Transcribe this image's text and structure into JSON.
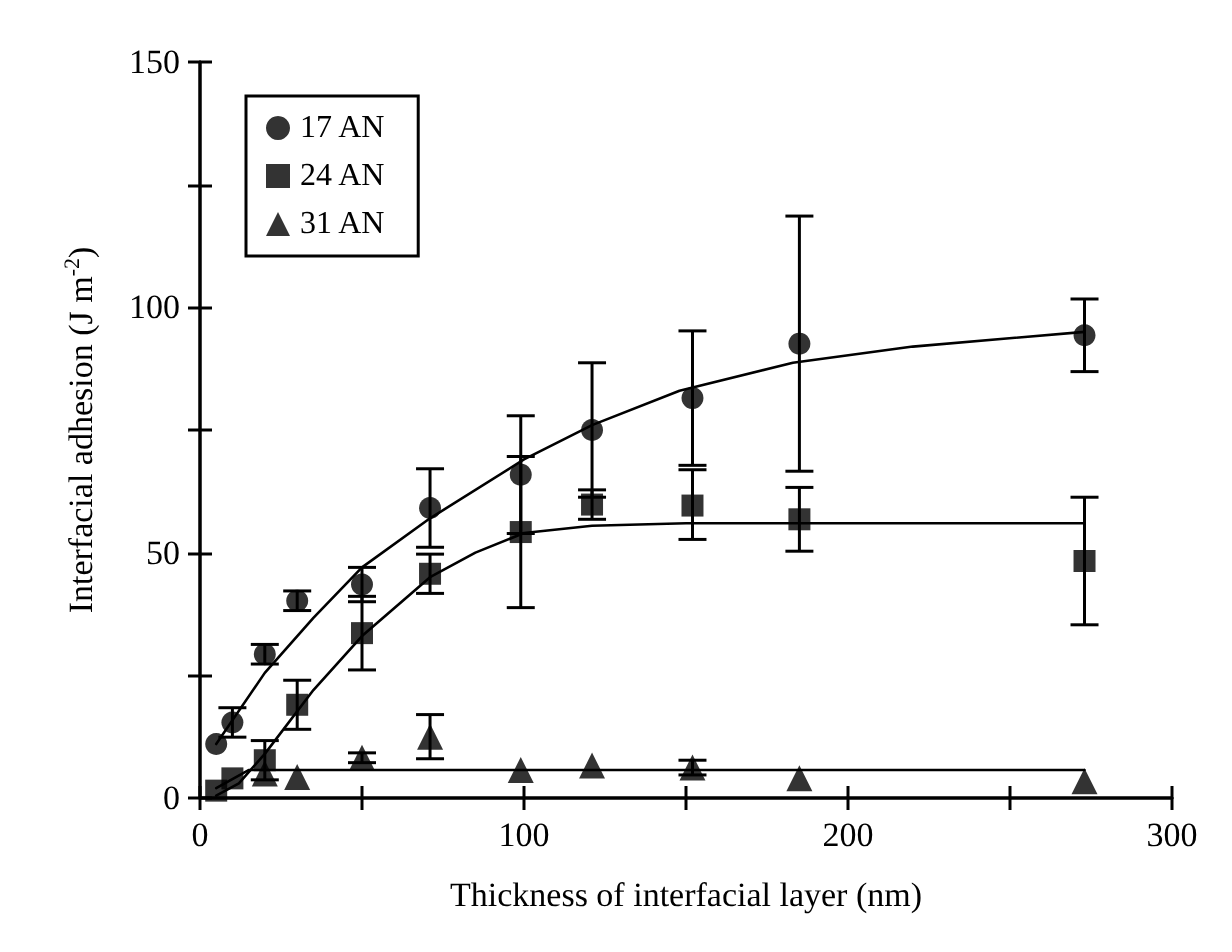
{
  "chart_data": {
    "type": "scatter",
    "xlabel": "Thickness of interfacial layer (nm)",
    "ylabel": "Interfacial adhesion (J m$^{-2}$)",
    "xlim": [
      0,
      300
    ],
    "xticks": [
      0,
      {
        "value": 50,
        "label": null
      },
      100,
      {
        "value": 150,
        "label": null
      },
      200,
      {
        "value": 250,
        "label": null
      },
      300
    ],
    "ylim": [
      0,
      150
    ],
    "yticks": [
      0,
      {
        "value": 25,
        "label": null
      },
      50,
      {
        "value": 75,
        "label": null
      },
      100,
      {
        "value": 125,
        "label": null
      },
      150
    ],
    "grid": false,
    "legend": "top left",
    "series": [
      {
        "name": "17 AN",
        "color": "#000000",
        "marker": "circle",
        "x": [
          5,
          10,
          20,
          30,
          50,
          71,
          99,
          121,
          152,
          185,
          273
        ],
        "values": [
          11,
          15.4,
          29.3,
          40.2,
          43.5,
          59.1,
          65.9,
          75,
          81.5,
          92.6,
          94.3
        ],
        "errors": [
          null,
          3,
          2,
          2,
          3.5,
          8,
          12,
          13.7,
          13.7,
          26,
          7.4
        ]
      },
      {
        "name": "24 AN",
        "color": "#000000",
        "marker": "square",
        "x": [
          5,
          10,
          20,
          30,
          50,
          71,
          99,
          121,
          152,
          185,
          273
        ],
        "values": [
          1.5,
          4,
          7.7,
          19,
          33.6,
          45.7,
          54.2,
          59.8,
          59.6,
          56.8,
          48.3
        ],
        "errors": [
          null,
          null,
          4,
          5,
          7.5,
          4,
          15.4,
          3,
          [
            52.7,
            66.9
          ],
          6.5,
          13
        ]
      },
      {
        "name": "31 AN",
        "color": "#000000",
        "marker": "triangle",
        "x": [
          20,
          30,
          50,
          71,
          99,
          121,
          152,
          185,
          273
        ],
        "values": [
          5,
          4.3,
          8.2,
          12.5,
          5.7,
          6.6,
          6.2,
          4,
          3.4
        ],
        "errors": [
          null,
          null,
          1,
          4.5,
          null,
          null,
          1.5,
          null,
          null
        ]
      },
      {
        "type": "line",
        "color": "#000000",
        "marker": "none",
        "x": [
          5,
          20,
          35,
          50,
          71,
          100,
          121,
          148,
          183,
          220,
          273
        ],
        "values": [
          11,
          25.5,
          36.7,
          47,
          57,
          69,
          76,
          83,
          88.7,
          92,
          95
        ]
      },
      {
        "type": "line",
        "color": "#000000",
        "marker": "none",
        "x": [
          5,
          12,
          20,
          35,
          50,
          71,
          85,
          100,
          121,
          150,
          273
        ],
        "values": [
          0.5,
          3,
          9,
          22,
          33,
          45,
          50,
          54,
          55.5,
          56,
          56
        ]
      },
      {
        "type": "line",
        "color": "#000000",
        "marker": "none",
        "x": [
          5,
          15,
          273
        ],
        "values": [
          2,
          5.7,
          5.7
        ]
      }
    ]
  }
}
